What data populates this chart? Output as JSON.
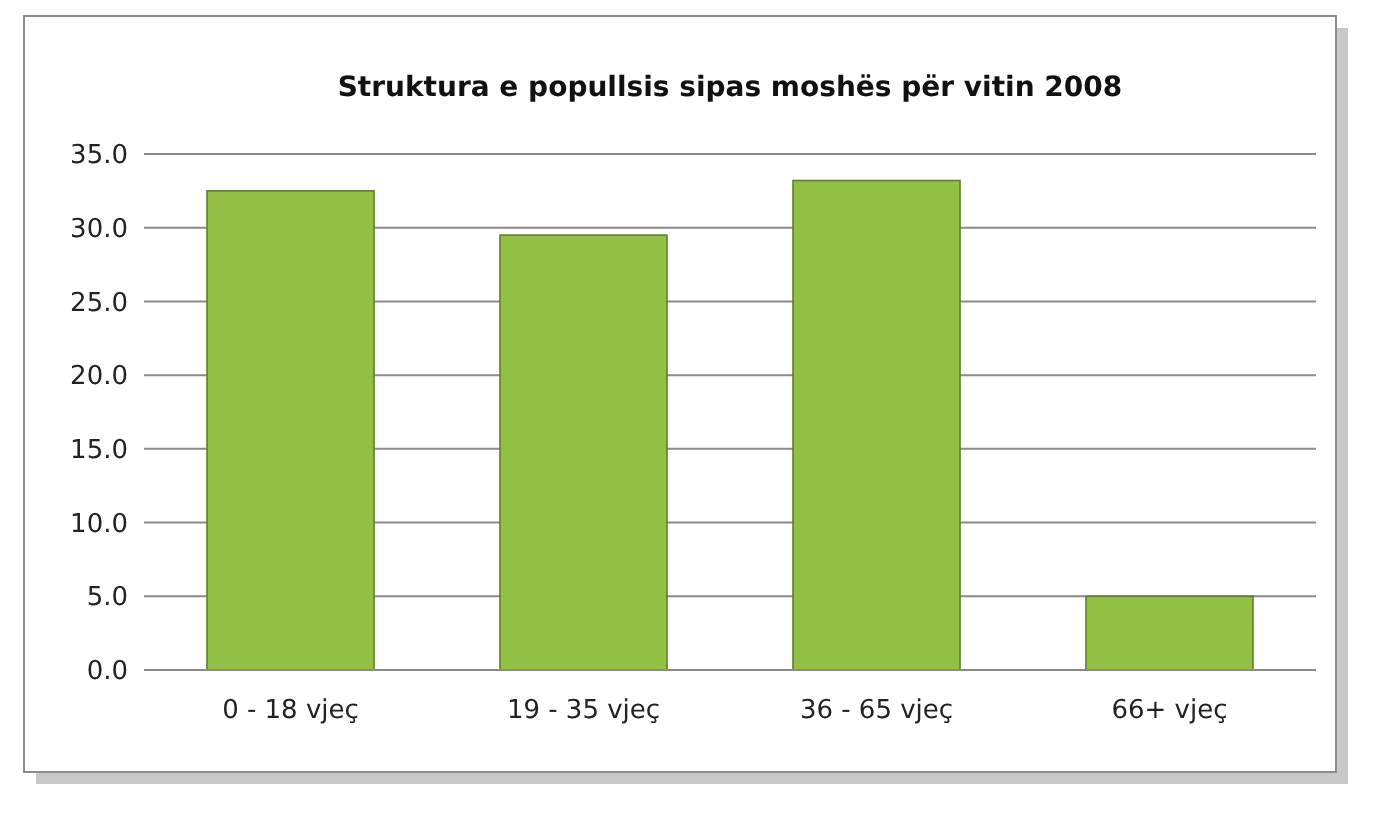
{
  "chart_data": {
    "type": "bar",
    "title": "Struktura e popullsis sipas moshës për vitin 2008",
    "categories": [
      "0 - 18 vjeç",
      "19 - 35 vjeç",
      "36 - 65 vjeç",
      "66+ vjeç"
    ],
    "values": [
      32.5,
      29.5,
      33.2,
      5.0
    ],
    "color": "#92c045",
    "ylim": [
      0,
      35
    ],
    "yticks": [
      {
        "value": 0,
        "label": "0.0"
      },
      {
        "value": 5,
        "label": "5.0"
      },
      {
        "value": 10,
        "label": "10.0"
      },
      {
        "value": 15,
        "label": "15.0"
      },
      {
        "value": 20,
        "label": "20.0"
      },
      {
        "value": 25,
        "label": "25.0"
      },
      {
        "value": 30,
        "label": "30.0"
      },
      {
        "value": 35,
        "label": "35.0"
      }
    ],
    "grid": "y"
  }
}
